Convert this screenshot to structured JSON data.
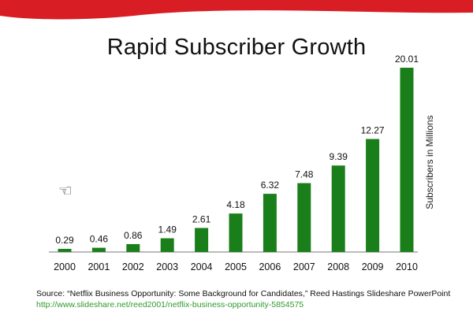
{
  "chart_data": {
    "type": "bar",
    "title": "Rapid Subscriber Growth",
    "xlabel": "",
    "ylabel": "Subscribers in Millions",
    "categories": [
      "2000",
      "2001",
      "2002",
      "2003",
      "2004",
      "2005",
      "2006",
      "2007",
      "2008",
      "2009",
      "2010"
    ],
    "values": [
      0.29,
      0.46,
      0.86,
      1.49,
      2.61,
      4.18,
      6.32,
      7.48,
      9.39,
      12.27,
      20.01
    ],
    "value_labels": [
      "0.29",
      "0.46",
      "0.86",
      "1.49",
      "2.61",
      "4.18",
      "6.32",
      "7.48",
      "9.39",
      "12.27",
      "20.01"
    ],
    "ylim": [
      0,
      20.01
    ],
    "grid": false,
    "legend": "none",
    "bar_color": "#1a7f1a"
  },
  "source": {
    "text": "Source: “Netflix Business Opportunity: Some Background for Candidates,” Reed Hastings Slideshare PowerPoint",
    "link": "http://www.slideshare.net/reed2001/netflix-business-opportunity-5854575"
  },
  "colors": {
    "header_red": "#d81e24",
    "bar_green": "#1a7f1a",
    "link_green": "#2f9a2f"
  }
}
